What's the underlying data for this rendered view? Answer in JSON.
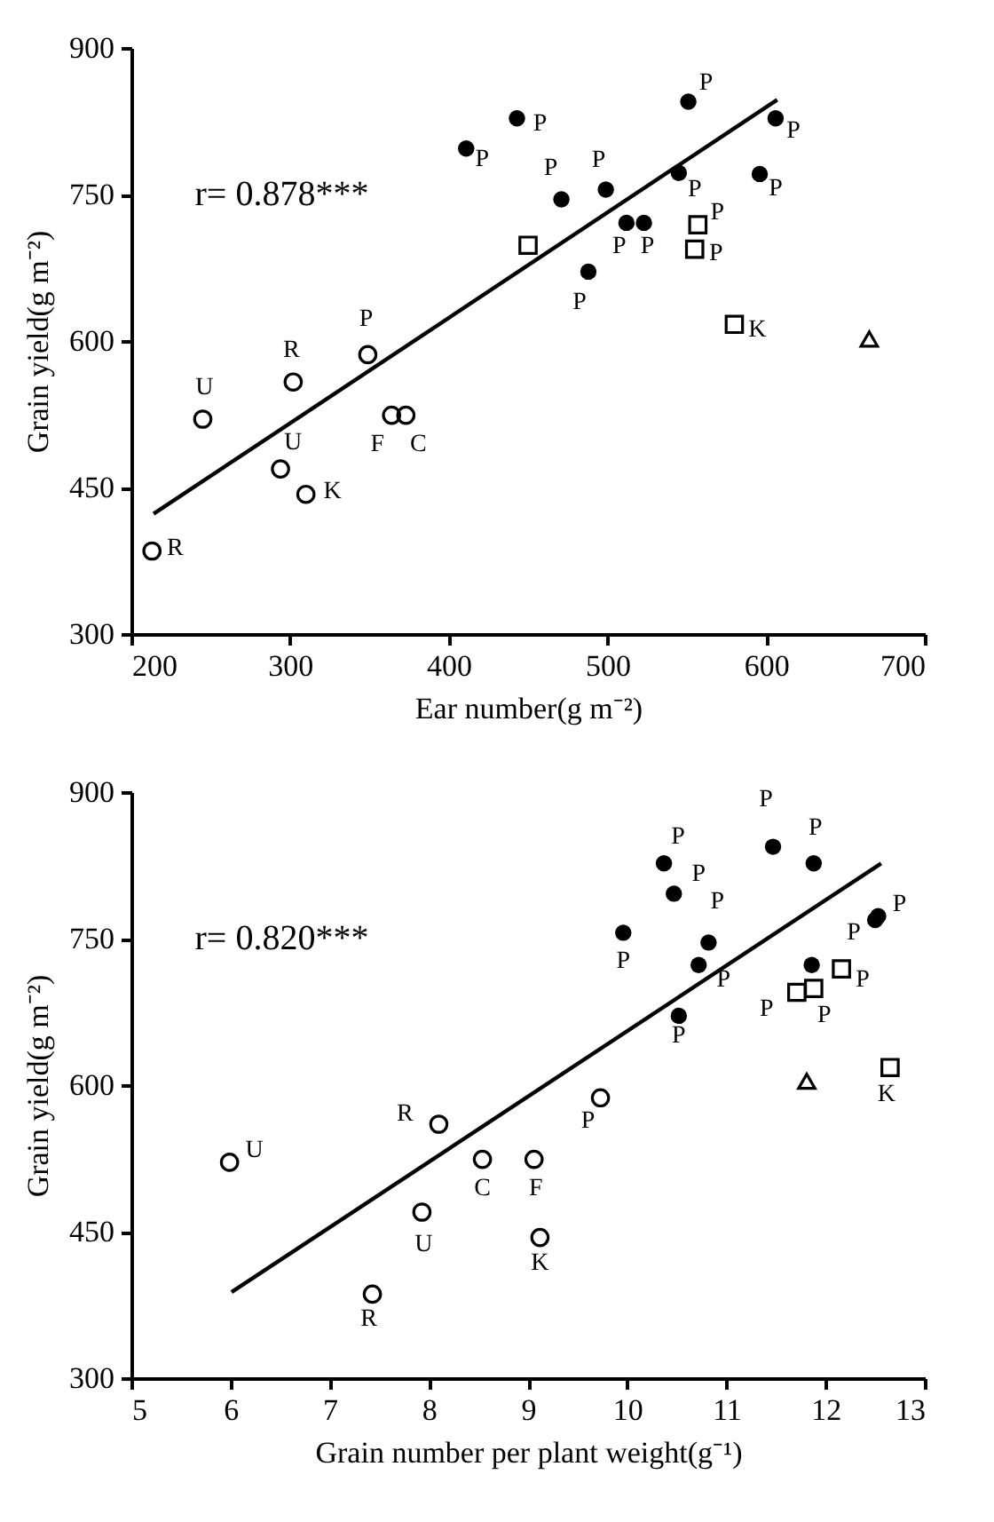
{
  "chart_data": [
    {
      "type": "scatter",
      "xlabel": "Ear number(g m⁻²)",
      "ylabel": "Grain yield(g m⁻²)",
      "xlim": [
        200,
        700
      ],
      "xticks": [
        200,
        300,
        400,
        500,
        600,
        700
      ],
      "ylim": [
        300,
        900
      ],
      "yticks": [
        300,
        450,
        600,
        750,
        900
      ],
      "grid": false,
      "series": [
        {
          "type": "scatter",
          "marker": "circle",
          "color": "#000000",
          "x": [
            411,
            443,
            471,
            499,
            488,
            512,
            523,
            545,
            551,
            596,
            606
          ],
          "values": [
            797,
            828,
            745,
            755,
            671,
            721,
            721,
            772,
            845,
            771,
            828
          ]
        },
        {
          "type": "scatter",
          "marker": "square",
          "color": "#000000",
          "x": [
            450,
            557,
            555,
            580
          ],
          "values": [
            698,
            719,
            694,
            617
          ]
        },
        {
          "type": "scatter",
          "marker": "triangle",
          "color": "#000000",
          "x": [
            665
          ],
          "values": [
            602
          ]
        },
        {
          "type": "scatter",
          "marker": "circle",
          "color": "#000000",
          "x": [
            349,
            302,
            245,
            294,
            310,
            364,
            373,
            213
          ],
          "values": [
            586,
            558,
            520,
            469,
            443,
            524,
            524,
            385
          ]
        },
        {
          "type": "line",
          "line_style": "solid",
          "color": "#000000",
          "x": [
            214,
            607
          ],
          "values": [
            423,
            847
          ]
        }
      ],
      "annotations": [
        "r= 0.878***",
        {
          "text": "P",
          "x": 411,
          "y": 797
        },
        {
          "text": "P",
          "x": 443,
          "y": 828
        },
        {
          "text": "P",
          "x": 471,
          "y": 745
        },
        {
          "text": "P",
          "x": 499,
          "y": 755
        },
        {
          "text": "P",
          "x": 488,
          "y": 671
        },
        {
          "text": "P",
          "x": 512,
          "y": 721
        },
        {
          "text": "P",
          "x": 523,
          "y": 721
        },
        {
          "text": "P",
          "x": 545,
          "y": 772
        },
        {
          "text": "P",
          "x": 551,
          "y": 845
        },
        {
          "text": "P",
          "x": 596,
          "y": 771
        },
        {
          "text": "P",
          "x": 606,
          "y": 828
        },
        {
          "text": "P",
          "x": 557,
          "y": 719
        },
        {
          "text": "P",
          "x": 555,
          "y": 694
        },
        {
          "text": "K",
          "x": 580,
          "y": 617
        },
        {
          "text": "P",
          "x": 349,
          "y": 586
        },
        {
          "text": "R",
          "x": 302,
          "y": 558
        },
        {
          "text": "U",
          "x": 245,
          "y": 520
        },
        {
          "text": "U",
          "x": 294,
          "y": 469
        },
        {
          "text": "K",
          "x": 310,
          "y": 443
        },
        {
          "text": "F",
          "x": 364,
          "y": 524
        },
        {
          "text": "C",
          "x": 373,
          "y": 524
        },
        {
          "text": "R",
          "x": 213,
          "y": 385
        }
      ]
    },
    {
      "type": "scatter",
      "xlabel": "Grain number per plant weight(g⁻¹)",
      "ylabel": "Grain yield(g m⁻²)",
      "xlim": [
        5,
        13
      ],
      "xticks": [
        5,
        6,
        7,
        8,
        9,
        10,
        11,
        12,
        13
      ],
      "ylim": [
        300,
        900
      ],
      "yticks": [
        300,
        450,
        600,
        750,
        900
      ],
      "grid": false,
      "series": [
        {
          "type": "scatter",
          "marker": "circle",
          "color": "#000000",
          "x": [
            9.96,
            10.37,
            10.47,
            10.82,
            10.72,
            10.52,
            11.47,
            11.88,
            11.86,
            12.53,
            12.5
          ],
          "values": [
            756,
            827,
            796,
            746,
            723,
            671,
            844,
            827,
            723,
            773,
            769
          ]
        },
        {
          "type": "scatter",
          "marker": "square",
          "color": "#000000",
          "x": [
            11.71,
            11.88,
            12.16,
            12.65
          ],
          "values": [
            695,
            699,
            719,
            618
          ]
        },
        {
          "type": "scatter",
          "marker": "triangle",
          "color": "#000000",
          "x": [
            11.81
          ],
          "values": [
            604
          ]
        },
        {
          "type": "scatter",
          "marker": "circle",
          "color": "#000000",
          "x": [
            9.73,
            8.1,
            5.99,
            8.54,
            9.06,
            7.93,
            9.12,
            7.43
          ],
          "values": [
            587,
            560,
            521,
            524,
            524,
            470,
            444,
            386
          ]
        },
        {
          "type": "line",
          "line_style": "solid",
          "color": "#000000",
          "x": [
            6.01,
            12.56
          ],
          "values": [
            388,
            827
          ]
        }
      ],
      "annotations": [
        "r= 0.820***",
        {
          "text": "P",
          "x": 9.96,
          "y": 756
        },
        {
          "text": "P",
          "x": 10.37,
          "y": 827
        },
        {
          "text": "P",
          "x": 10.47,
          "y": 796
        },
        {
          "text": "P",
          "x": 10.82,
          "y": 746
        },
        {
          "text": "P",
          "x": 10.72,
          "y": 723
        },
        {
          "text": "P",
          "x": 10.52,
          "y": 671
        },
        {
          "text": "P",
          "x": 11.47,
          "y": 844
        },
        {
          "text": "P",
          "x": 11.88,
          "y": 827
        },
        {
          "text": "P",
          "x": 12.53,
          "y": 773
        },
        {
          "text": "P",
          "x": 12.5,
          "y": 769
        },
        {
          "text": "P",
          "x": 12.16,
          "y": 719
        },
        {
          "text": "P",
          "x": 11.71,
          "y": 695
        },
        {
          "text": "P",
          "x": 11.88,
          "y": 699
        },
        {
          "text": "K",
          "x": 12.65,
          "y": 618
        },
        {
          "text": "P",
          "x": 9.73,
          "y": 587
        },
        {
          "text": "R",
          "x": 8.1,
          "y": 560
        },
        {
          "text": "U",
          "x": 5.99,
          "y": 521
        },
        {
          "text": "C",
          "x": 8.54,
          "y": 524
        },
        {
          "text": "F",
          "x": 9.06,
          "y": 524
        },
        {
          "text": "U",
          "x": 7.93,
          "y": 470
        },
        {
          "text": "K",
          "x": 9.12,
          "y": 444
        },
        {
          "text": "R",
          "x": 7.43,
          "y": 386
        }
      ]
    }
  ]
}
